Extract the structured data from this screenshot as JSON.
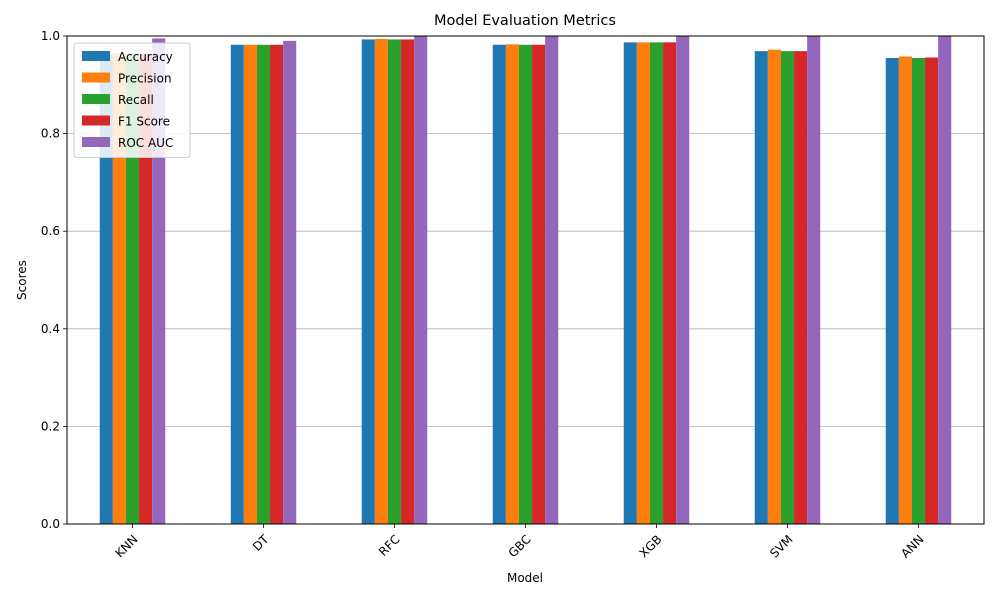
{
  "chart_data": {
    "type": "bar",
    "title": "Model Evaluation Metrics",
    "xlabel": "Model",
    "ylabel": "Scores",
    "ylim": [
      0,
      1.0
    ],
    "yticks": [
      "0.0",
      "0.2",
      "0.4",
      "0.6",
      "0.8",
      "1.0"
    ],
    "grid": "y-major",
    "legend_position": "top-left",
    "categories": [
      "KNN",
      "DT",
      "RFC",
      "GBC",
      "XGB",
      "SVM",
      "ANN"
    ],
    "series": [
      {
        "name": "Accuracy",
        "color": "#1f77b4",
        "values": [
          0.962,
          0.982,
          0.993,
          0.982,
          0.987,
          0.969,
          0.955
        ]
      },
      {
        "name": "Precision",
        "color": "#ff7f0e",
        "values": [
          0.965,
          0.982,
          0.994,
          0.983,
          0.987,
          0.972,
          0.958
        ]
      },
      {
        "name": "Recall",
        "color": "#2ca02c",
        "values": [
          0.962,
          0.982,
          0.993,
          0.982,
          0.987,
          0.969,
          0.955
        ]
      },
      {
        "name": "F1 Score",
        "color": "#d62728",
        "values": [
          0.962,
          0.982,
          0.993,
          0.982,
          0.987,
          0.969,
          0.956
        ]
      },
      {
        "name": "ROC AUC",
        "color": "#9467bd",
        "values": [
          0.995,
          0.99,
          1.0,
          1.0,
          1.0,
          1.0,
          1.0
        ]
      }
    ]
  }
}
